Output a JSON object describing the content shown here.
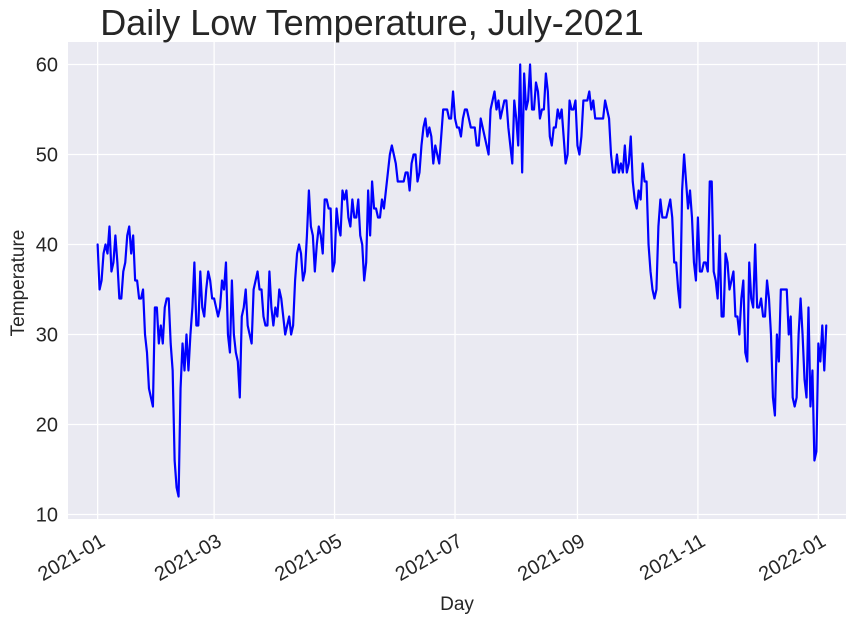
{
  "chart_data": {
    "type": "line",
    "title": "Daily Low Temperature, July-2021",
    "xlabel": "Day",
    "ylabel": "Temperature",
    "x_start": "2021-01-01",
    "xlim": [
      "2020-12-17",
      "2022-01-15"
    ],
    "ylim": [
      9.5,
      62.5
    ],
    "x_ticks": [
      "2021-01",
      "2021-03",
      "2021-05",
      "2021-07",
      "2021-09",
      "2021-11",
      "2022-01"
    ],
    "y_ticks": [
      10,
      20,
      30,
      40,
      50,
      60
    ],
    "grid": true,
    "background": "#EAEAF2",
    "line_color": "#0000FF",
    "series": [
      {
        "name": "",
        "values": [
          40,
          35,
          36,
          39,
          40,
          39,
          42,
          37,
          38,
          41,
          38,
          34,
          34,
          37,
          38,
          41,
          42,
          39,
          41,
          36,
          36,
          34,
          34,
          35,
          30,
          28,
          24,
          23,
          22,
          33,
          33,
          29,
          31,
          29,
          33,
          34,
          34,
          29,
          26,
          16,
          13,
          12,
          24,
          29,
          26,
          30,
          26,
          30,
          33,
          38,
          31,
          31,
          37,
          33,
          32,
          35,
          37,
          36,
          34,
          34,
          33,
          32,
          33,
          36,
          35,
          38,
          30,
          28,
          36,
          30,
          28,
          27,
          23,
          32,
          33,
          35,
          31,
          30,
          29,
          35,
          36,
          37,
          35,
          35,
          32,
          31,
          31,
          37,
          33,
          31,
          33,
          32,
          35,
          34,
          32,
          30,
          31,
          32,
          30,
          31,
          36,
          39,
          40,
          39,
          36,
          37,
          41,
          46,
          42,
          41,
          37,
          40,
          42,
          41,
          39,
          45,
          45,
          44,
          44,
          37,
          38,
          44,
          42,
          41,
          46,
          45,
          46,
          43,
          42,
          45,
          43,
          43,
          45,
          41,
          40,
          36,
          38,
          46,
          41,
          47,
          44,
          44,
          43,
          43,
          45,
          44,
          46,
          48,
          50,
          51,
          50,
          49,
          47,
          47,
          47,
          47,
          48,
          48,
          46,
          49,
          50,
          50,
          47,
          48,
          51,
          53,
          54,
          52,
          53,
          52,
          49,
          51,
          50,
          49,
          52,
          55,
          55,
          55,
          54,
          54,
          57,
          54,
          53,
          53,
          52,
          54,
          55,
          55,
          54,
          53,
          53,
          53,
          51,
          51,
          54,
          53,
          52,
          51,
          50,
          55,
          56,
          57,
          55,
          56,
          54,
          55,
          56,
          56,
          53,
          51,
          49,
          56,
          54,
          51,
          60,
          48,
          59,
          55,
          56,
          60,
          55,
          55,
          58,
          57,
          54,
          55,
          55,
          59,
          57,
          52,
          51,
          53,
          53,
          55,
          54,
          55,
          52,
          49,
          50,
          56,
          55,
          55,
          56,
          51,
          50,
          52,
          56,
          56,
          56,
          57,
          55,
          56,
          54,
          54,
          54,
          54,
          54,
          56,
          55,
          54,
          50,
          48,
          48,
          50,
          48,
          49,
          48,
          51,
          48,
          49,
          52,
          47,
          45,
          44,
          46,
          45,
          49,
          47,
          47,
          40,
          37,
          35,
          34,
          35,
          42,
          45,
          43,
          43,
          43,
          44,
          45,
          43,
          38,
          38,
          35,
          33,
          46,
          50,
          47,
          44,
          46,
          43,
          38,
          36,
          43,
          37,
          37,
          38,
          38,
          37,
          47,
          47,
          37,
          36,
          34,
          41,
          32,
          32,
          39,
          38,
          35,
          36,
          37,
          32,
          32,
          30,
          34,
          36,
          28,
          27,
          38,
          34,
          33,
          40,
          33,
          33,
          34,
          32,
          32,
          36,
          34,
          30,
          23,
          21,
          30,
          27,
          35,
          35,
          35,
          35,
          30,
          32,
          23,
          22,
          23,
          30,
          34,
          30,
          25,
          23,
          33,
          22,
          26,
          16,
          17,
          29,
          27,
          31,
          26,
          31
        ]
      }
    ]
  }
}
